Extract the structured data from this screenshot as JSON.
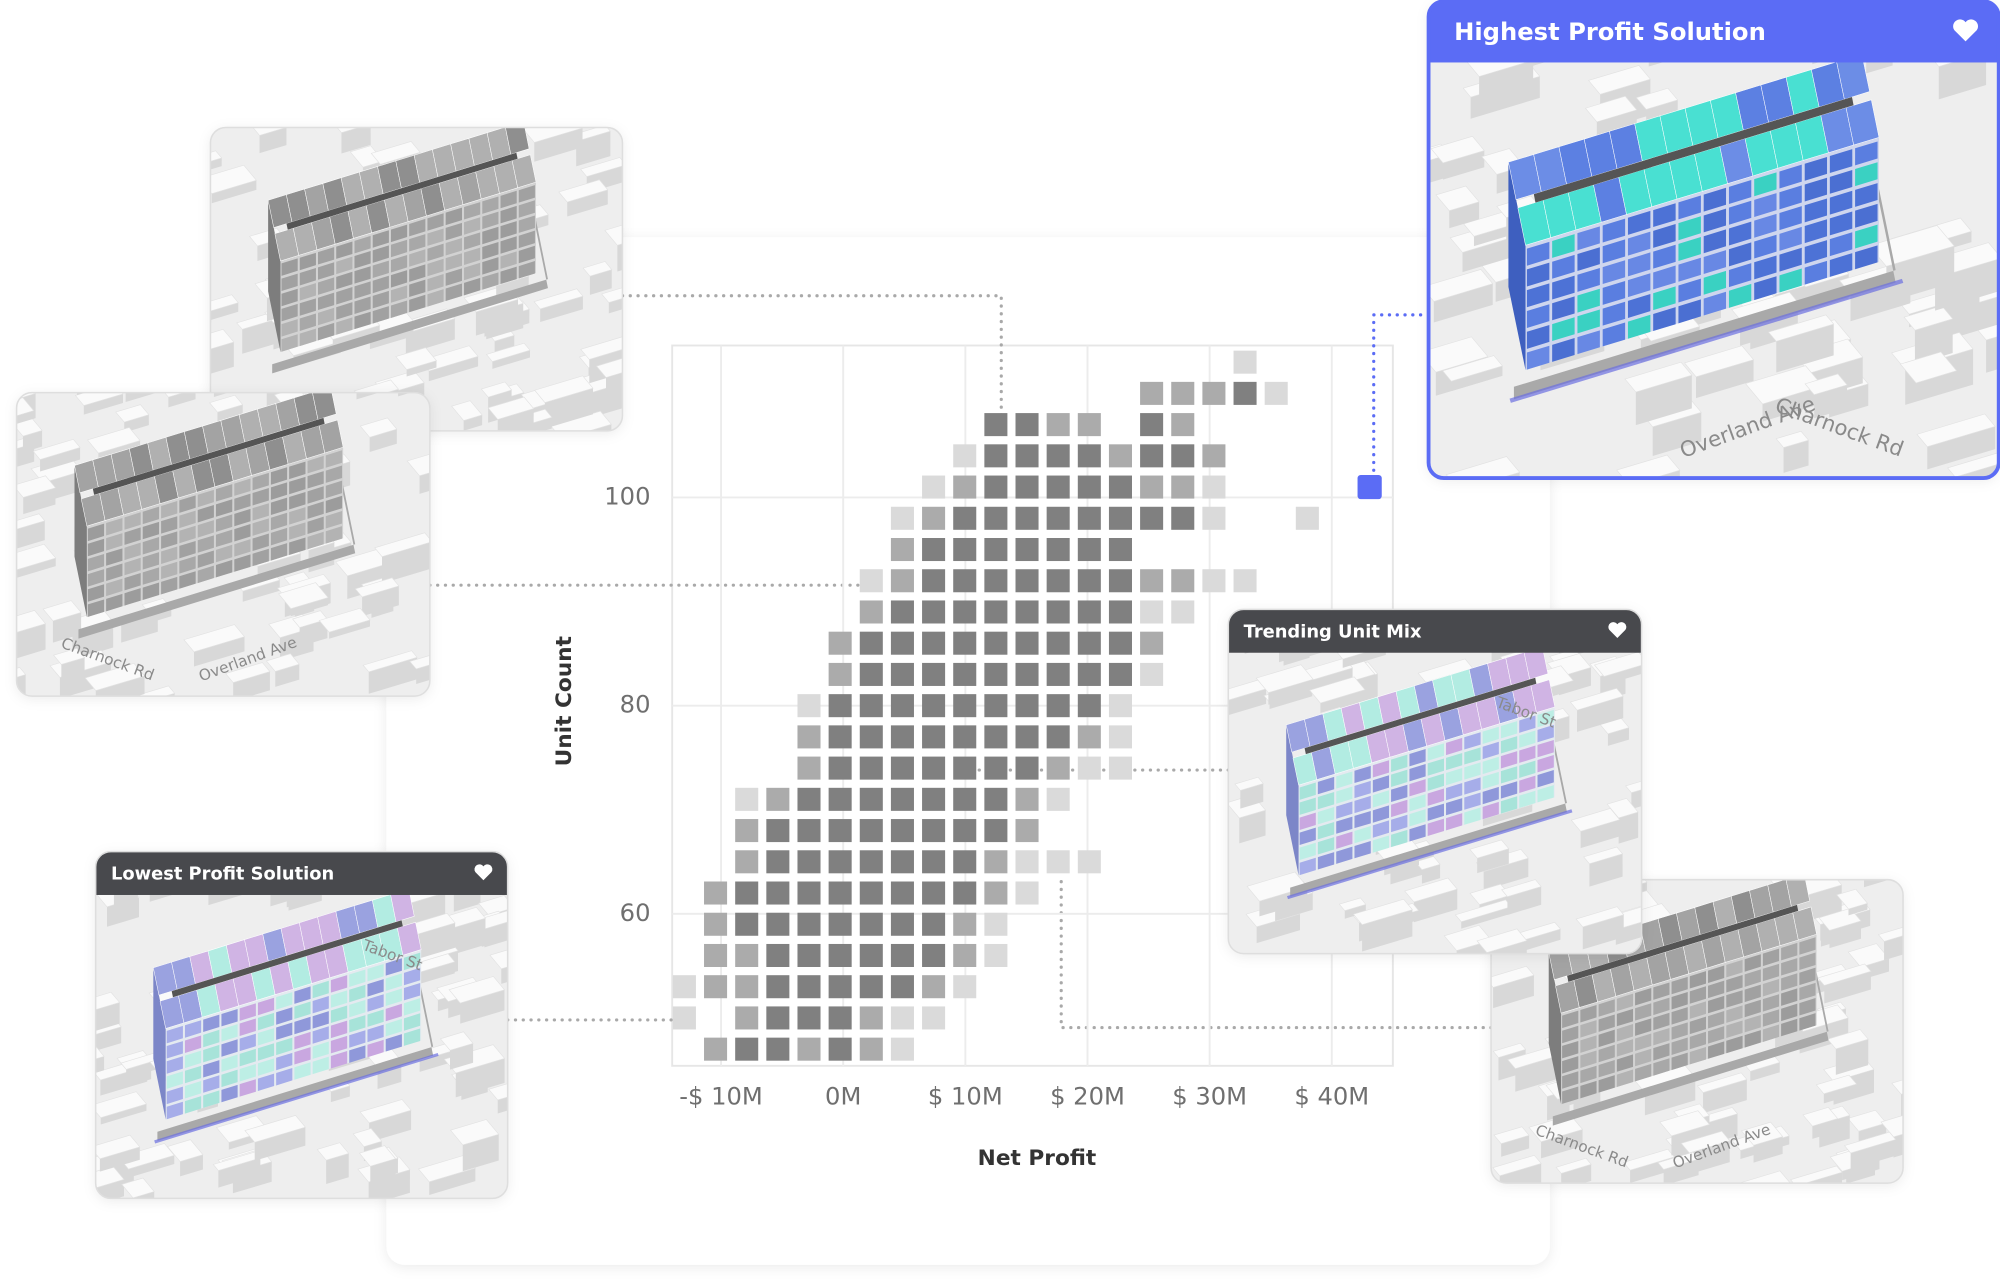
{
  "chart_data": {
    "type": "heatmap",
    "x_label": "Net Profit",
    "y_label": "Unit Count",
    "xlim": [
      -14,
      45
    ],
    "ylim": [
      45.4,
      114.6
    ],
    "xticks": [
      {
        "value": -10,
        "label": "-$ 10M"
      },
      {
        "value": 0,
        "label": "0M"
      },
      {
        "value": 10,
        "label": "$ 10M"
      },
      {
        "value": 20,
        "label": "$ 20M"
      },
      {
        "value": 30,
        "label": "$ 30M"
      },
      {
        "value": 40,
        "label": "$ 40M"
      }
    ],
    "yticks": [
      60,
      80,
      100
    ],
    "grid": true,
    "x": [
      -13,
      -10.45,
      -7.9,
      -5.35,
      -2.8,
      -0.25,
      2.3,
      4.85,
      7.4,
      9.95,
      12.5,
      15.05,
      17.6,
      20.15,
      22.7,
      25.25,
      27.8,
      30.35,
      32.9,
      35.45,
      38,
      40.55,
      43.1
    ],
    "y": [
      113,
      110,
      107,
      104,
      101,
      98,
      95,
      92,
      89,
      86,
      83,
      80,
      77,
      74,
      71,
      68,
      65,
      62,
      59,
      56,
      53,
      50,
      47
    ],
    "level_colors": {
      "1": "#dadada",
      "2": "#ababab",
      "3": "#808080"
    },
    "z": [
      [
        null,
        null,
        null,
        null,
        null,
        null,
        null,
        null,
        null,
        null,
        null,
        null,
        null,
        null,
        null,
        null,
        null,
        null,
        1,
        null,
        null,
        null,
        null
      ],
      [
        null,
        null,
        null,
        null,
        null,
        null,
        null,
        null,
        null,
        null,
        null,
        null,
        null,
        null,
        null,
        2,
        2,
        2,
        3,
        1,
        null,
        null,
        null
      ],
      [
        null,
        null,
        null,
        null,
        null,
        null,
        null,
        null,
        null,
        null,
        3,
        3,
        2,
        2,
        null,
        3,
        2,
        null,
        null,
        null,
        null,
        null,
        null
      ],
      [
        null,
        null,
        null,
        null,
        null,
        null,
        null,
        null,
        null,
        1,
        3,
        3,
        3,
        3,
        2,
        3,
        3,
        2,
        null,
        null,
        null,
        null,
        null
      ],
      [
        null,
        null,
        null,
        null,
        null,
        null,
        null,
        null,
        1,
        2,
        3,
        3,
        3,
        3,
        3,
        2,
        2,
        1,
        null,
        null,
        null,
        null,
        null
      ],
      [
        null,
        null,
        null,
        null,
        null,
        null,
        null,
        1,
        2,
        3,
        3,
        3,
        3,
        3,
        3,
        3,
        3,
        1,
        null,
        null,
        1,
        null,
        null
      ],
      [
        null,
        null,
        null,
        null,
        null,
        null,
        null,
        2,
        3,
        3,
        3,
        3,
        3,
        3,
        3,
        null,
        null,
        null,
        null,
        null,
        null,
        null,
        null
      ],
      [
        null,
        null,
        null,
        null,
        null,
        null,
        1,
        2,
        3,
        3,
        3,
        3,
        3,
        3,
        3,
        2,
        2,
        1,
        1,
        null,
        null,
        null,
        null
      ],
      [
        null,
        null,
        null,
        null,
        null,
        null,
        2,
        3,
        3,
        3,
        3,
        3,
        3,
        3,
        3,
        1,
        1,
        null,
        null,
        null,
        null,
        null,
        null
      ],
      [
        null,
        null,
        null,
        null,
        null,
        2,
        3,
        3,
        3,
        3,
        3,
        3,
        3,
        3,
        3,
        2,
        null,
        null,
        null,
        null,
        null,
        null,
        null
      ],
      [
        null,
        null,
        null,
        null,
        null,
        2,
        3,
        3,
        3,
        3,
        3,
        3,
        3,
        3,
        3,
        1,
        null,
        null,
        null,
        null,
        null,
        null,
        null
      ],
      [
        null,
        null,
        null,
        null,
        1,
        3,
        3,
        3,
        3,
        3,
        3,
        3,
        3,
        3,
        1,
        null,
        null,
        null,
        null,
        null,
        null,
        null,
        null
      ],
      [
        null,
        null,
        null,
        null,
        2,
        3,
        3,
        3,
        3,
        3,
        3,
        3,
        3,
        2,
        1,
        null,
        null,
        null,
        null,
        null,
        null,
        null,
        null
      ],
      [
        null,
        null,
        null,
        null,
        2,
        3,
        3,
        3,
        3,
        3,
        3,
        3,
        2,
        1,
        1,
        null,
        null,
        null,
        null,
        null,
        null,
        null,
        null
      ],
      [
        null,
        null,
        1,
        2,
        3,
        3,
        3,
        3,
        3,
        3,
        3,
        2,
        1,
        null,
        null,
        null,
        null,
        null,
        null,
        null,
        null,
        null,
        null
      ],
      [
        null,
        null,
        2,
        3,
        3,
        3,
        3,
        3,
        3,
        3,
        3,
        2,
        null,
        null,
        null,
        null,
        null,
        null,
        null,
        null,
        null,
        null,
        null
      ],
      [
        null,
        null,
        2,
        3,
        3,
        3,
        3,
        3,
        3,
        3,
        2,
        1,
        1,
        1,
        null,
        null,
        null,
        null,
        null,
        null,
        null,
        null,
        null
      ],
      [
        null,
        2,
        3,
        3,
        3,
        3,
        3,
        3,
        3,
        3,
        2,
        1,
        null,
        null,
        null,
        null,
        null,
        null,
        null,
        null,
        null,
        null,
        null
      ],
      [
        null,
        2,
        3,
        3,
        3,
        3,
        3,
        3,
        3,
        2,
        1,
        null,
        null,
        null,
        null,
        null,
        null,
        null,
        null,
        null,
        null,
        null,
        null
      ],
      [
        null,
        2,
        2,
        3,
        3,
        3,
        3,
        3,
        3,
        2,
        1,
        null,
        null,
        null,
        null,
        null,
        null,
        null,
        null,
        null,
        null,
        null,
        null
      ],
      [
        1,
        2,
        2,
        3,
        3,
        3,
        3,
        3,
        2,
        1,
        null,
        null,
        null,
        null,
        null,
        null,
        null,
        null,
        null,
        null,
        null,
        null,
        null
      ],
      [
        1,
        null,
        2,
        3,
        3,
        3,
        2,
        1,
        1,
        null,
        null,
        null,
        null,
        null,
        null,
        null,
        null,
        null,
        null,
        null,
        null,
        null,
        null
      ],
      [
        null,
        2,
        3,
        3,
        2,
        3,
        2,
        1,
        null,
        null,
        null,
        null,
        null,
        null,
        null,
        null,
        null,
        null,
        null,
        null,
        null,
        null,
        null
      ]
    ],
    "highlight": {
      "x": 43.1,
      "y": 101,
      "color": "#5b6cf5"
    }
  },
  "cards": [
    {
      "title": "Highest Profit Solution",
      "streets": [
        "Charnock Rd",
        "Overland Ave"
      ]
    },
    {
      "title": "Trending Unit Mix",
      "streets": [
        "Tabor St"
      ]
    },
    {
      "title": "Lowest Profit Solution",
      "streets": [
        "Tabor St"
      ]
    },
    {
      "streets": [
        "Charnock Rd",
        "Overland Ave"
      ]
    },
    {
      "streets": [
        "Charnock Rd",
        "Overland Ave"
      ]
    }
  ]
}
